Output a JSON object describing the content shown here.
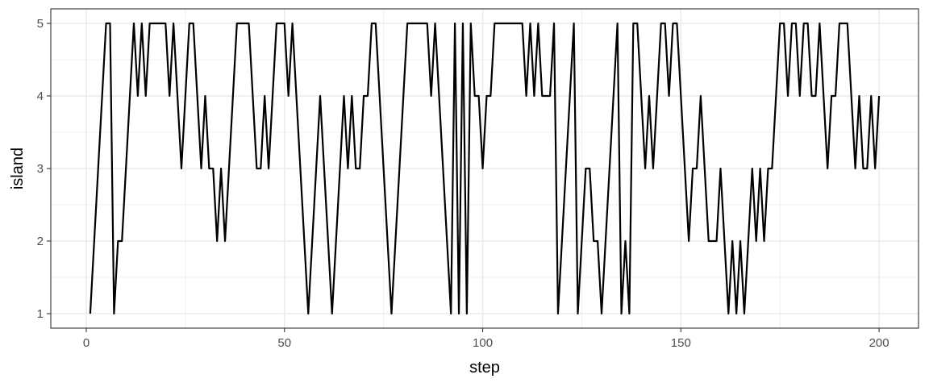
{
  "chart_data": {
    "type": "line",
    "xlabel": "step",
    "ylabel": "island",
    "xlim": [
      -8.95,
      209.95
    ],
    "ylim": [
      0.8,
      5.2
    ],
    "x_ticks": [
      0,
      50,
      100,
      150,
      200
    ],
    "x_minor_ticks": [
      25,
      75,
      125,
      175
    ],
    "y_ticks": [
      1,
      2,
      3,
      4,
      5
    ],
    "y_minor_ticks": [
      1.5,
      2.5,
      3.5,
      4.5
    ],
    "grid": true,
    "legend": "none",
    "colors": {
      "line": "#000000",
      "grid": "#ebebeb",
      "panel_border": "#333333",
      "tick_text": "#4d4d4d"
    },
    "series": [
      {
        "x": [
          1,
          2,
          3,
          4,
          5,
          6,
          7,
          8,
          9,
          10,
          11,
          12,
          13,
          14,
          15,
          16,
          17,
          18,
          19,
          20,
          21,
          22,
          23,
          24,
          25,
          26,
          27,
          28,
          29,
          30,
          31,
          32,
          33,
          34,
          35,
          36,
          37,
          38,
          39,
          40,
          41,
          42,
          43,
          44,
          45,
          46,
          47,
          48,
          49,
          50,
          51,
          52,
          53,
          54,
          55,
          56,
          57,
          58,
          59,
          60,
          61,
          62,
          63,
          64,
          65,
          66,
          67,
          68,
          69,
          70,
          71,
          72,
          73,
          74,
          75,
          76,
          77,
          78,
          79,
          80,
          81,
          82,
          83,
          84,
          85,
          86,
          87,
          88,
          89,
          90,
          91,
          92,
          93,
          94,
          95,
          96,
          97,
          98,
          99,
          100,
          101,
          102,
          103,
          104,
          105,
          106,
          107,
          108,
          109,
          110,
          111,
          112,
          113,
          114,
          115,
          116,
          117,
          118,
          119,
          120,
          121,
          122,
          123,
          124,
          125,
          126,
          127,
          128,
          129,
          130,
          131,
          132,
          133,
          134,
          135,
          136,
          137,
          138,
          139,
          140,
          141,
          142,
          143,
          144,
          145,
          146,
          147,
          148,
          149,
          150,
          151,
          152,
          153,
          154,
          155,
          156,
          157,
          158,
          159,
          160,
          161,
          162,
          163,
          164,
          165,
          166,
          167,
          168,
          169,
          170,
          171,
          172,
          173,
          174,
          175,
          176,
          177,
          178,
          179,
          180,
          181,
          182,
          183,
          184,
          185,
          186,
          187,
          188,
          189,
          190,
          191,
          192,
          193,
          194,
          195,
          196,
          197,
          198,
          199,
          200
        ],
        "values": [
          1,
          2,
          3,
          4,
          5,
          5,
          1,
          2,
          2,
          3,
          4,
          5,
          4,
          5,
          4,
          5,
          5,
          5,
          5,
          5,
          4,
          5,
          4,
          3,
          4,
          5,
          5,
          4,
          3,
          4,
          3,
          3,
          2,
          3,
          2,
          3,
          4,
          5,
          5,
          5,
          5,
          4,
          3,
          3,
          4,
          3,
          4,
          5,
          5,
          5,
          4,
          5,
          4,
          3,
          2,
          1,
          2,
          3,
          4,
          3,
          2,
          1,
          2,
          3,
          4,
          3,
          4,
          3,
          3,
          4,
          4,
          5,
          5,
          4,
          3,
          2,
          1,
          2,
          3,
          4,
          5,
          5,
          5,
          5,
          5,
          5,
          4,
          5,
          4,
          3,
          2,
          1,
          5,
          1,
          5,
          1,
          5,
          4,
          4,
          3,
          4,
          4,
          5,
          5,
          5,
          5,
          5,
          5,
          5,
          5,
          4,
          5,
          4,
          5,
          4,
          4,
          4,
          5,
          1,
          2,
          3,
          4,
          5,
          1,
          2,
          3,
          3,
          2,
          2,
          1,
          2,
          3,
          4,
          5,
          1,
          2,
          1,
          5,
          5,
          4,
          3,
          4,
          3,
          4,
          5,
          5,
          4,
          5,
          5,
          4,
          3,
          2,
          3,
          3,
          4,
          3,
          2,
          2,
          2,
          3,
          2,
          1,
          2,
          1,
          2,
          1,
          2,
          3,
          2,
          3,
          2,
          3,
          3,
          4,
          5,
          5,
          4,
          5,
          5,
          4,
          5,
          5,
          4,
          4,
          5,
          4,
          3,
          4,
          4,
          5,
          5,
          5,
          4,
          3,
          4,
          3,
          3,
          4,
          3,
          4
        ]
      }
    ]
  }
}
